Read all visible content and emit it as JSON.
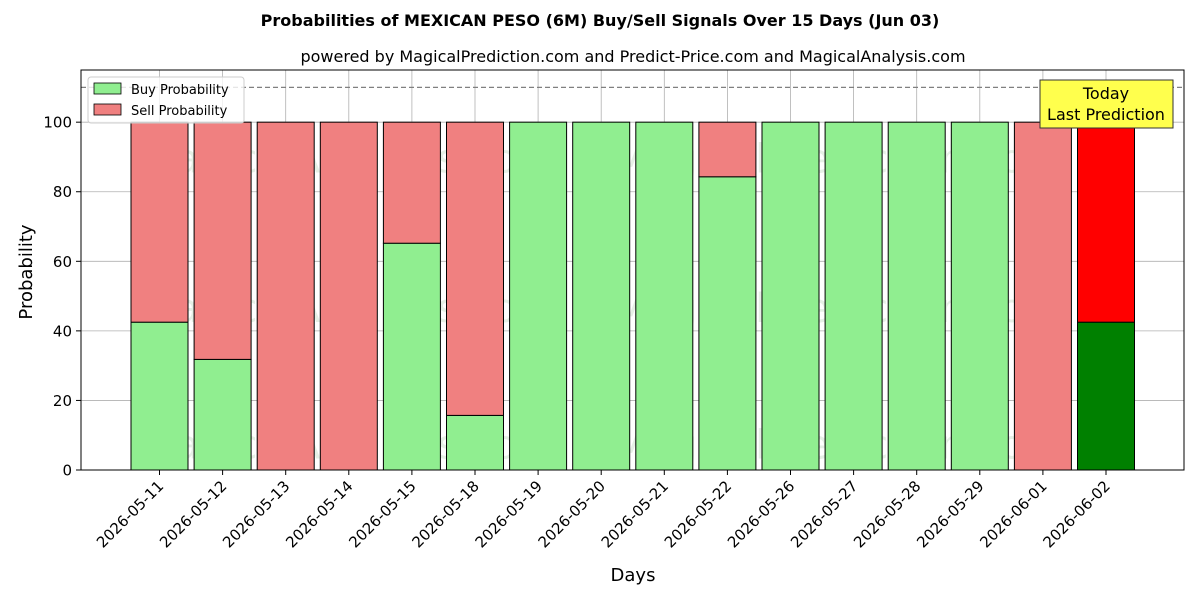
{
  "chart_data": {
    "type": "bar",
    "stacked": true,
    "title": "Probabilities of MEXICAN PESO (6M) Buy/Sell Signals Over 15 Days (Jun 03)",
    "subtitle": "powered by MagicalPrediction.com and Predict-Price.com and MagicalAnalysis.com",
    "xlabel": "Days",
    "ylabel": "Probability",
    "ylim": [
      0,
      115
    ],
    "yticks": [
      0,
      20,
      40,
      60,
      80,
      100
    ],
    "grid": true,
    "legend_position": "top-left",
    "reference_line": 110,
    "categories": [
      "2026-05-11",
      "2026-05-12",
      "2026-05-13",
      "2026-05-14",
      "2026-05-15",
      "2026-05-18",
      "2026-05-19",
      "2026-05-20",
      "2026-05-21",
      "2026-05-22",
      "2026-05-26",
      "2026-05-27",
      "2026-05-28",
      "2026-05-29",
      "2026-06-01",
      "2026-06-02"
    ],
    "series": [
      {
        "name": "Buy Probability",
        "color": "#90ee90",
        "highlight_color": "#008000",
        "values": [
          42.5,
          31.8,
          0,
          0,
          65.2,
          15.7,
          100,
          100,
          100,
          84.3,
          100,
          100,
          100,
          100,
          0,
          42.5
        ]
      },
      {
        "name": "Sell Probability",
        "color": "#f08080",
        "highlight_color": "#ff0000",
        "values": [
          57.5,
          68.2,
          100,
          100,
          34.8,
          84.3,
          0,
          0,
          0,
          15.7,
          0,
          0,
          0,
          0,
          100,
          57.5
        ]
      }
    ],
    "highlight_index": 15,
    "annotation": {
      "line1": "Today",
      "line2": "Last Prediction",
      "background": "#ffff4d"
    },
    "watermarks": [
      "MagicalAnalysis.com",
      "MagicalPrediction.com"
    ]
  }
}
